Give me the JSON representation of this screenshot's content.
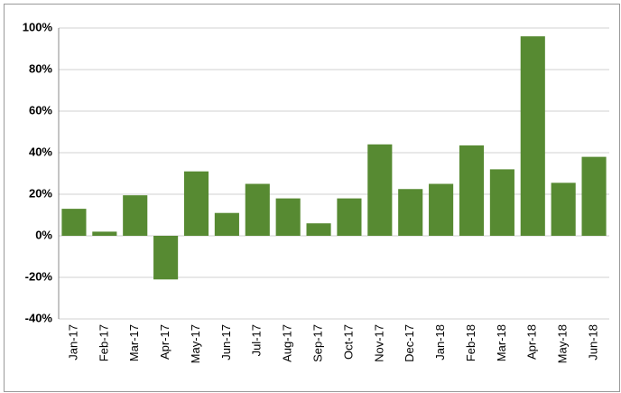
{
  "chart_data": {
    "type": "bar",
    "categories": [
      "Jan-17",
      "Feb-17",
      "Mar-17",
      "Apr-17",
      "May-17",
      "Jun-17",
      "Jul-17",
      "Aug-17",
      "Sep-17",
      "Oct-17",
      "Nov-17",
      "Dec-17",
      "Jan-18",
      "Feb-18",
      "Mar-18",
      "Apr-18",
      "May-18",
      "Jun-18"
    ],
    "values": [
      13,
      2,
      19.5,
      -21,
      31,
      11,
      25,
      18,
      6,
      18,
      44,
      22.5,
      25,
      43.5,
      32,
      96,
      25.5,
      38
    ],
    "color": "#578a32",
    "ylim": [
      -40,
      100
    ],
    "yticks": [
      {
        "value": -40,
        "label": "-40%"
      },
      {
        "value": -20,
        "label": "-20%"
      },
      {
        "value": 0,
        "label": "0%"
      },
      {
        "value": 20,
        "label": "20%"
      },
      {
        "value": 40,
        "label": "40%"
      },
      {
        "value": 60,
        "label": "60%"
      },
      {
        "value": 80,
        "label": "80%"
      },
      {
        "value": 100,
        "label": "100%"
      }
    ],
    "grid": true
  }
}
